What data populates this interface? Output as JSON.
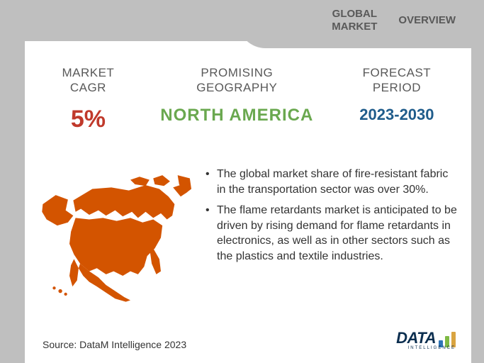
{
  "header": {
    "col1_line1": "GLOBAL",
    "col1_line2": "MARKET",
    "col2": "OVERVIEW"
  },
  "stats": {
    "cagr": {
      "label1": "MARKET",
      "label2": "CAGR",
      "value": "5%",
      "color": "#c0392b"
    },
    "geo": {
      "label1": "PROMISING",
      "label2": "GEOGRAPHY",
      "value": "NORTH AMERICA",
      "color": "#6aa84f"
    },
    "period": {
      "label1": "FORECAST",
      "label2": "PERIOD",
      "value": "2023-2030",
      "color": "#1f5c8b"
    }
  },
  "map": {
    "fill": "#d35400"
  },
  "bullets": [
    "The global market share of fire-resistant fabric in the transportation sector was over 30%.",
    "The flame retardants market is anticipated to be driven by rising demand for flame retardants in electronics, as well as in other sectors such as the plastics and textile industries."
  ],
  "source": "Source: DataM Intelligence  2023",
  "logo": {
    "text": "DATA",
    "sub": "INTELLIGENCE",
    "bars": [
      {
        "h": 10,
        "c": "#2e75b6"
      },
      {
        "h": 16,
        "c": "#7fba44"
      },
      {
        "h": 22,
        "c": "#d9a441"
      }
    ],
    "text_color": "#0b2e4f"
  },
  "colors": {
    "page_bg": "#bfbfbf",
    "card_bg": "#ffffff",
    "label_text": "#595959",
    "body_text": "#333333"
  }
}
